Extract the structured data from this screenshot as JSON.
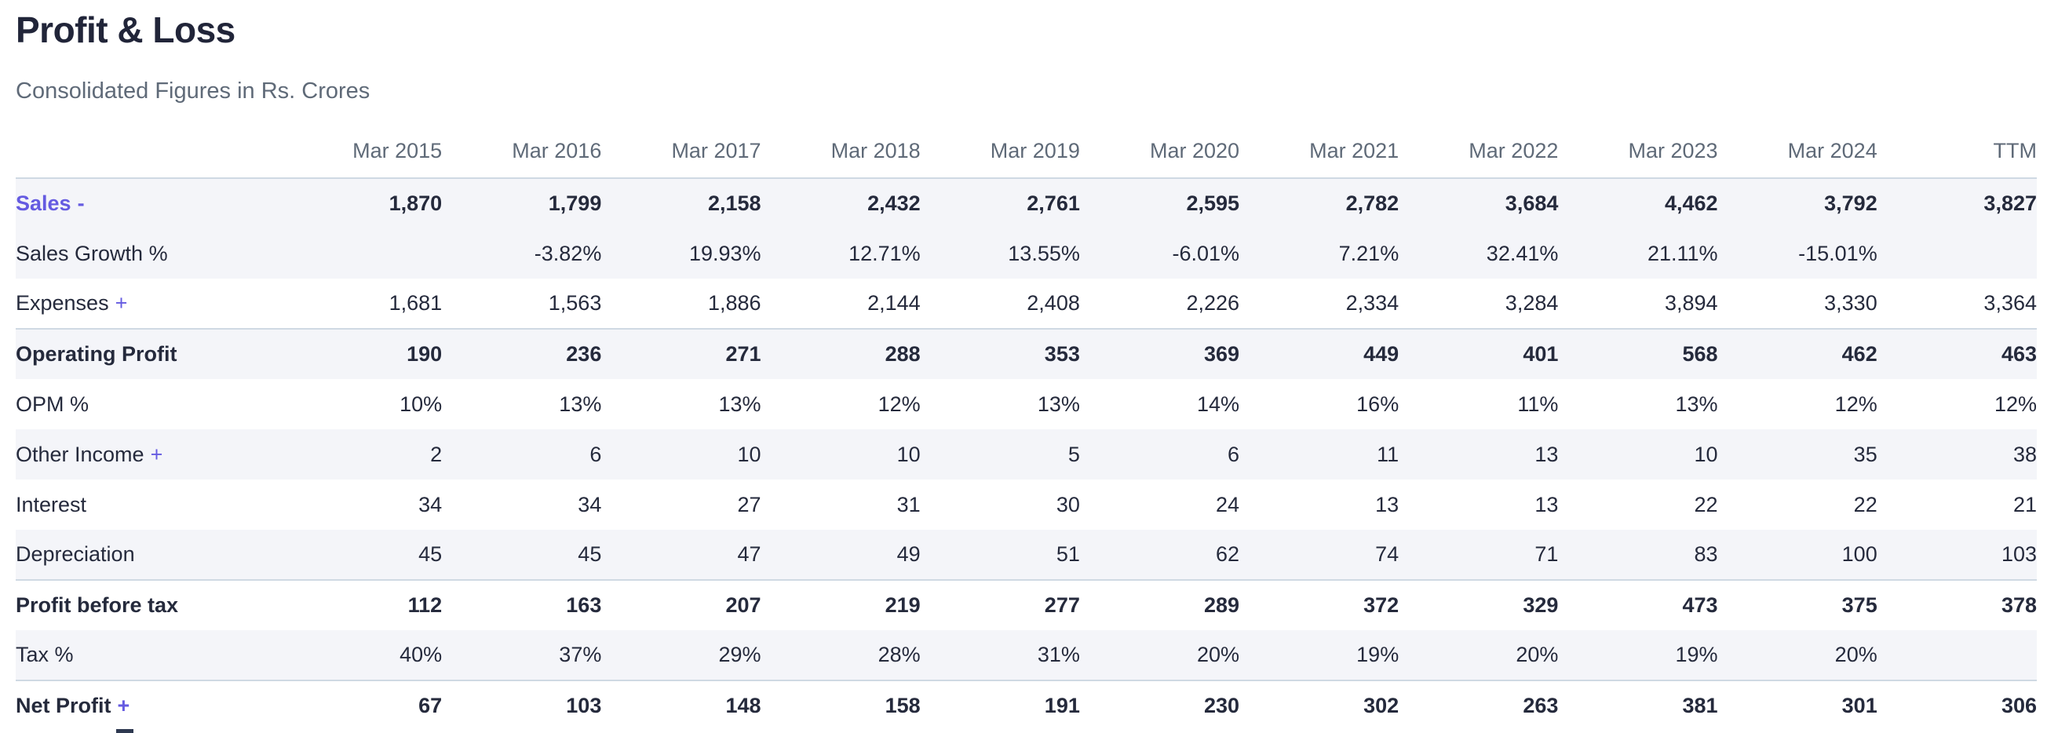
{
  "page": {
    "title": "Profit & Loss",
    "subtitle": "Consolidated Figures in Rs. Crores"
  },
  "colors": {
    "accent": "#655be1",
    "heading_text": "#212539",
    "body_text": "#252a3c",
    "muted_text": "#5f6a78",
    "row_stripe": "#f4f5f9",
    "divider": "#cfd9e3",
    "cutoff_bar": "#2e3950",
    "background": "#ffffff"
  },
  "table": {
    "columns": [
      "Mar 2015",
      "Mar 2016",
      "Mar 2017",
      "Mar 2018",
      "Mar 2019",
      "Mar 2020",
      "Mar 2021",
      "Mar 2022",
      "Mar 2023",
      "Mar 2024",
      "TTM"
    ],
    "rows": [
      {
        "label": "Sales",
        "suffix": "-",
        "link": true,
        "expandable": true,
        "bold": true,
        "striped": true,
        "section_end": false,
        "values": [
          "1,870",
          "1,799",
          "2,158",
          "2,432",
          "2,761",
          "2,595",
          "2,782",
          "3,684",
          "4,462",
          "3,792",
          "3,827"
        ]
      },
      {
        "label": "Sales Growth %",
        "suffix": "",
        "link": false,
        "expandable": false,
        "bold": false,
        "striped": true,
        "section_end": false,
        "values": [
          "",
          "-3.82%",
          "19.93%",
          "12.71%",
          "13.55%",
          "-6.01%",
          "7.21%",
          "32.41%",
          "21.11%",
          "-15.01%",
          ""
        ]
      },
      {
        "label": "Expenses",
        "suffix": "+",
        "link": false,
        "expandable": true,
        "bold": false,
        "striped": false,
        "section_end": true,
        "values": [
          "1,681",
          "1,563",
          "1,886",
          "2,144",
          "2,408",
          "2,226",
          "2,334",
          "3,284",
          "3,894",
          "3,330",
          "3,364"
        ]
      },
      {
        "label": "Operating Profit",
        "suffix": "",
        "link": false,
        "expandable": false,
        "bold": true,
        "striped": true,
        "section_end": false,
        "values": [
          "190",
          "236",
          "271",
          "288",
          "353",
          "369",
          "449",
          "401",
          "568",
          "462",
          "463"
        ]
      },
      {
        "label": "OPM %",
        "suffix": "",
        "link": false,
        "expandable": false,
        "bold": false,
        "striped": false,
        "section_end": false,
        "values": [
          "10%",
          "13%",
          "13%",
          "12%",
          "13%",
          "14%",
          "16%",
          "11%",
          "13%",
          "12%",
          "12%"
        ]
      },
      {
        "label": "Other Income",
        "suffix": "+",
        "link": false,
        "expandable": true,
        "bold": false,
        "striped": true,
        "section_end": false,
        "values": [
          "2",
          "6",
          "10",
          "10",
          "5",
          "6",
          "11",
          "13",
          "10",
          "35",
          "38"
        ]
      },
      {
        "label": "Interest",
        "suffix": "",
        "link": false,
        "expandable": false,
        "bold": false,
        "striped": false,
        "section_end": false,
        "values": [
          "34",
          "34",
          "27",
          "31",
          "30",
          "24",
          "13",
          "13",
          "22",
          "22",
          "21"
        ]
      },
      {
        "label": "Depreciation",
        "suffix": "",
        "link": false,
        "expandable": false,
        "bold": false,
        "striped": true,
        "section_end": true,
        "values": [
          "45",
          "45",
          "47",
          "49",
          "51",
          "62",
          "74",
          "71",
          "83",
          "100",
          "103"
        ]
      },
      {
        "label": "Profit before tax",
        "suffix": "",
        "link": false,
        "expandable": false,
        "bold": true,
        "striped": false,
        "section_end": false,
        "values": [
          "112",
          "163",
          "207",
          "219",
          "277",
          "289",
          "372",
          "329",
          "473",
          "375",
          "378"
        ]
      },
      {
        "label": "Tax %",
        "suffix": "",
        "link": false,
        "expandable": false,
        "bold": false,
        "striped": true,
        "section_end": true,
        "values": [
          "40%",
          "37%",
          "29%",
          "28%",
          "31%",
          "20%",
          "19%",
          "20%",
          "19%",
          "20%",
          ""
        ]
      },
      {
        "label": "Net Profit",
        "suffix": "+",
        "link": false,
        "expandable": true,
        "bold": true,
        "striped": false,
        "section_end": false,
        "values": [
          "67",
          "103",
          "148",
          "158",
          "191",
          "230",
          "302",
          "263",
          "381",
          "301",
          "306"
        ]
      }
    ]
  }
}
